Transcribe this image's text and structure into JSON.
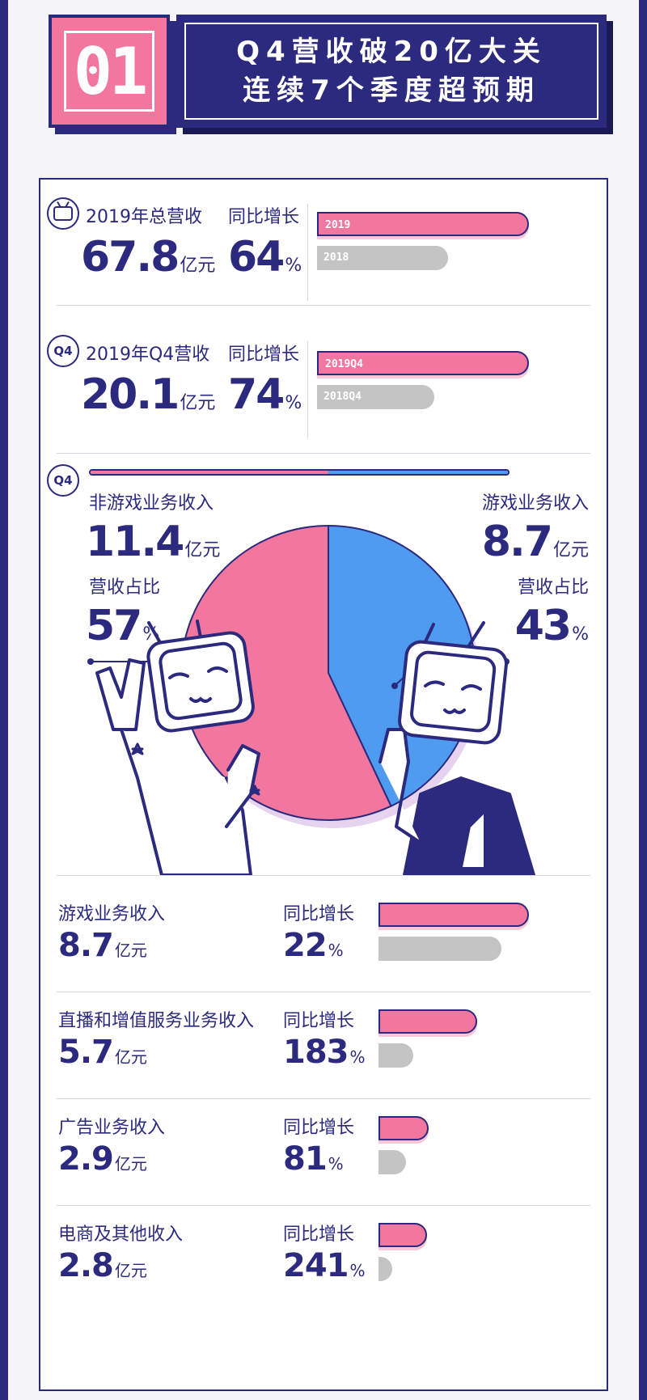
{
  "header": {
    "number": "01",
    "title_line1": "Q4营收破20亿大关",
    "title_line2": "连续7个季度超预期"
  },
  "colors": {
    "pink": "#f2779f",
    "blue": "#4f9bf0",
    "navy": "#2b2a7e",
    "grey": "#c4c4c4"
  },
  "annual": {
    "icon": "tv-icon",
    "label": "2019年总营收",
    "value": "67.8",
    "unit": "亿元",
    "growth_label": "同比增长",
    "growth": "64",
    "growth_unit": "%",
    "bar_2019": "2019",
    "bar_2018": "2018"
  },
  "q4": {
    "badge": "Q4",
    "label": "2019年Q4营收",
    "value": "20.1",
    "unit": "亿元",
    "growth_label": "同比增长",
    "growth": "74",
    "growth_unit": "%",
    "bar_2019": "2019Q4",
    "bar_2018": "2018Q4"
  },
  "split": {
    "badge": "Q4",
    "left_label": "非游戏业务收入",
    "left_value": "11.4",
    "left_unit": "亿元",
    "left_share_label": "营收占比",
    "left_share": "57",
    "left_share_unit": "%",
    "right_label": "游戏业务收入",
    "right_value": "8.7",
    "right_unit": "亿元",
    "right_share_label": "营收占比",
    "right_share": "43",
    "right_share_unit": "%"
  },
  "segments": [
    {
      "name": "游戏业务收入",
      "value": "8.7",
      "unit": "亿元",
      "growth_label": "同比增长",
      "growth": "22",
      "growth_unit": "%"
    },
    {
      "name": "直播和增值服务业务收入",
      "value": "5.7",
      "unit": "亿元",
      "growth_label": "同比增长",
      "growth": "183",
      "growth_unit": "%"
    },
    {
      "name": "广告业务收入",
      "value": "2.9",
      "unit": "亿元",
      "growth_label": "同比增长",
      "growth": "81",
      "growth_unit": "%"
    },
    {
      "name": "电商及其他收入",
      "value": "2.8",
      "unit": "亿元",
      "growth_label": "同比增长",
      "growth": "241",
      "growth_unit": "%"
    }
  ],
  "chart_data": [
    {
      "type": "bar",
      "categories": [
        "2019",
        "2018"
      ],
      "values": [
        67.8,
        41.3
      ],
      "unit": "亿元"
    },
    {
      "type": "bar",
      "categories": [
        "2019Q4",
        "2018Q4"
      ],
      "values": [
        20.1,
        11.6
      ],
      "unit": "亿元"
    },
    {
      "type": "pie",
      "categories": [
        "非游戏业务收入",
        "游戏业务收入"
      ],
      "values": [
        57,
        43
      ],
      "unit": "%"
    },
    {
      "type": "bar",
      "categories": [
        "游戏业务收入",
        "直播和增值服务业务收入",
        "广告业务收入",
        "电商及其他收入"
      ],
      "series": [
        {
          "values": [
            8.7,
            5.7,
            2.9,
            2.8
          ]
        },
        {
          "values": [
            7.1,
            2.0,
            1.6,
            0.8
          ]
        }
      ],
      "unit": "亿元"
    }
  ]
}
